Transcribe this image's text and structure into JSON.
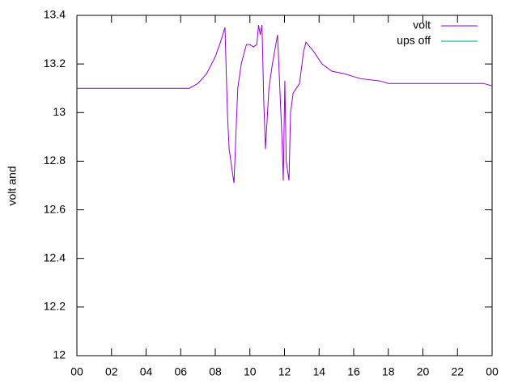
{
  "chart_data": {
    "type": "line",
    "ylabel": "volt and",
    "x": [
      0,
      6.5,
      7,
      7.5,
      8,
      8.3,
      8.56,
      8.7,
      8.8,
      9.08,
      9.3,
      9.5,
      9.8,
      10.0,
      10.2,
      10.4,
      10.5,
      10.6,
      10.7,
      10.8,
      10.9,
      11.1,
      11.3,
      11.6,
      11.85,
      11.93,
      12.02,
      12.1,
      12.26,
      12.35,
      12.5,
      12.87,
      13.1,
      13.24,
      13.7,
      14.17,
      14.74,
      15.44,
      16.37,
      17.54,
      18.0,
      23.5,
      24
    ],
    "series": [
      {
        "name": "volt",
        "color": "#9400d3",
        "values": [
          13.1,
          13.1,
          13.12,
          13.16,
          13.23,
          13.29,
          13.35,
          13.0,
          12.85,
          12.71,
          13.1,
          13.2,
          13.28,
          13.28,
          13.27,
          13.28,
          13.36,
          13.32,
          13.36,
          13.05,
          12.85,
          13.1,
          13.2,
          13.32,
          12.9,
          12.72,
          13.13,
          12.8,
          12.72,
          13.0,
          13.08,
          13.12,
          13.25,
          13.29,
          13.25,
          13.2,
          13.17,
          13.16,
          13.14,
          13.13,
          13.12,
          13.12,
          13.11
        ]
      },
      {
        "name": "ups off",
        "color": "#009e73"
      }
    ],
    "xlim": [
      0,
      24
    ],
    "xticks": [
      {
        "value": 0,
        "label": "00"
      },
      {
        "value": 2,
        "label": "02"
      },
      {
        "value": 4,
        "label": "04"
      },
      {
        "value": 6,
        "label": "06"
      },
      {
        "value": 8,
        "label": "08"
      },
      10,
      12,
      14,
      16,
      18,
      20,
      22,
      {
        "value": 24,
        "label": "00"
      }
    ],
    "ylim": [
      12,
      13.4
    ],
    "yticks": [
      12,
      12.2,
      12.4,
      12.6,
      12.8,
      13,
      13.2,
      13.4
    ],
    "legend": "top-right"
  }
}
